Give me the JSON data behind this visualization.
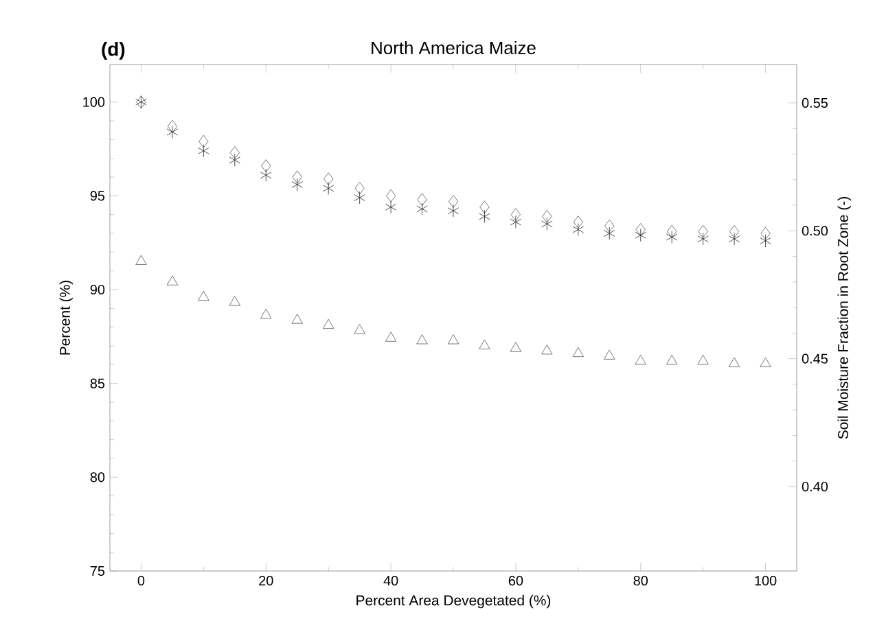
{
  "chart_data": {
    "type": "scatter",
    "title": "North America Maize",
    "annotations": [
      "(d)"
    ],
    "xlabel": "Percent Area Devegetated (%)",
    "ylabel": "Percent (%)",
    "y2label": "Soil Moisture Fraction in Root Zone (-)",
    "x": [
      0,
      5,
      10,
      15,
      20,
      25,
      30,
      35,
      40,
      45,
      50,
      55,
      60,
      65,
      70,
      75,
      80,
      85,
      90,
      95,
      100
    ],
    "series": [
      {
        "color": "#555555",
        "marker": "diamond",
        "values": [
          100,
          98.7,
          97.9,
          97.3,
          96.6,
          96.0,
          95.9,
          95.4,
          95.0,
          94.8,
          94.7,
          94.4,
          94.0,
          93.9,
          93.6,
          93.4,
          93.2,
          93.1,
          93.1,
          93.1,
          93.0
        ]
      },
      {
        "color": "#222222",
        "marker": "cross",
        "values": [
          100,
          98.4,
          97.4,
          96.9,
          96.1,
          95.6,
          95.4,
          94.9,
          94.4,
          94.3,
          94.2,
          93.9,
          93.6,
          93.5,
          93.2,
          93.0,
          92.9,
          92.8,
          92.7,
          92.7,
          92.6
        ]
      },
      {
        "color": "#555555",
        "marker": "triangle",
        "axis": "y2",
        "values": [
          0.488,
          0.48,
          0.474,
          0.472,
          0.467,
          0.465,
          0.463,
          0.461,
          0.458,
          0.457,
          0.457,
          0.455,
          0.454,
          0.453,
          0.452,
          0.451,
          0.449,
          0.449,
          0.449,
          0.448,
          0.448
        ]
      }
    ],
    "xlim": [
      -5,
      105
    ],
    "ylim": [
      75,
      102
    ],
    "y2lim": [
      0.367,
      0.565
    ],
    "xticks": [
      0,
      20,
      40,
      60,
      80,
      100
    ],
    "yticks": [
      75,
      80,
      85,
      90,
      95,
      100
    ],
    "y2ticks": [
      {
        "value": 0.4,
        "label": "0.40"
      },
      {
        "value": 0.45,
        "label": "0.45"
      },
      {
        "value": 0.5,
        "label": "0.50"
      },
      {
        "value": 0.55,
        "label": "0.55"
      }
    ]
  }
}
